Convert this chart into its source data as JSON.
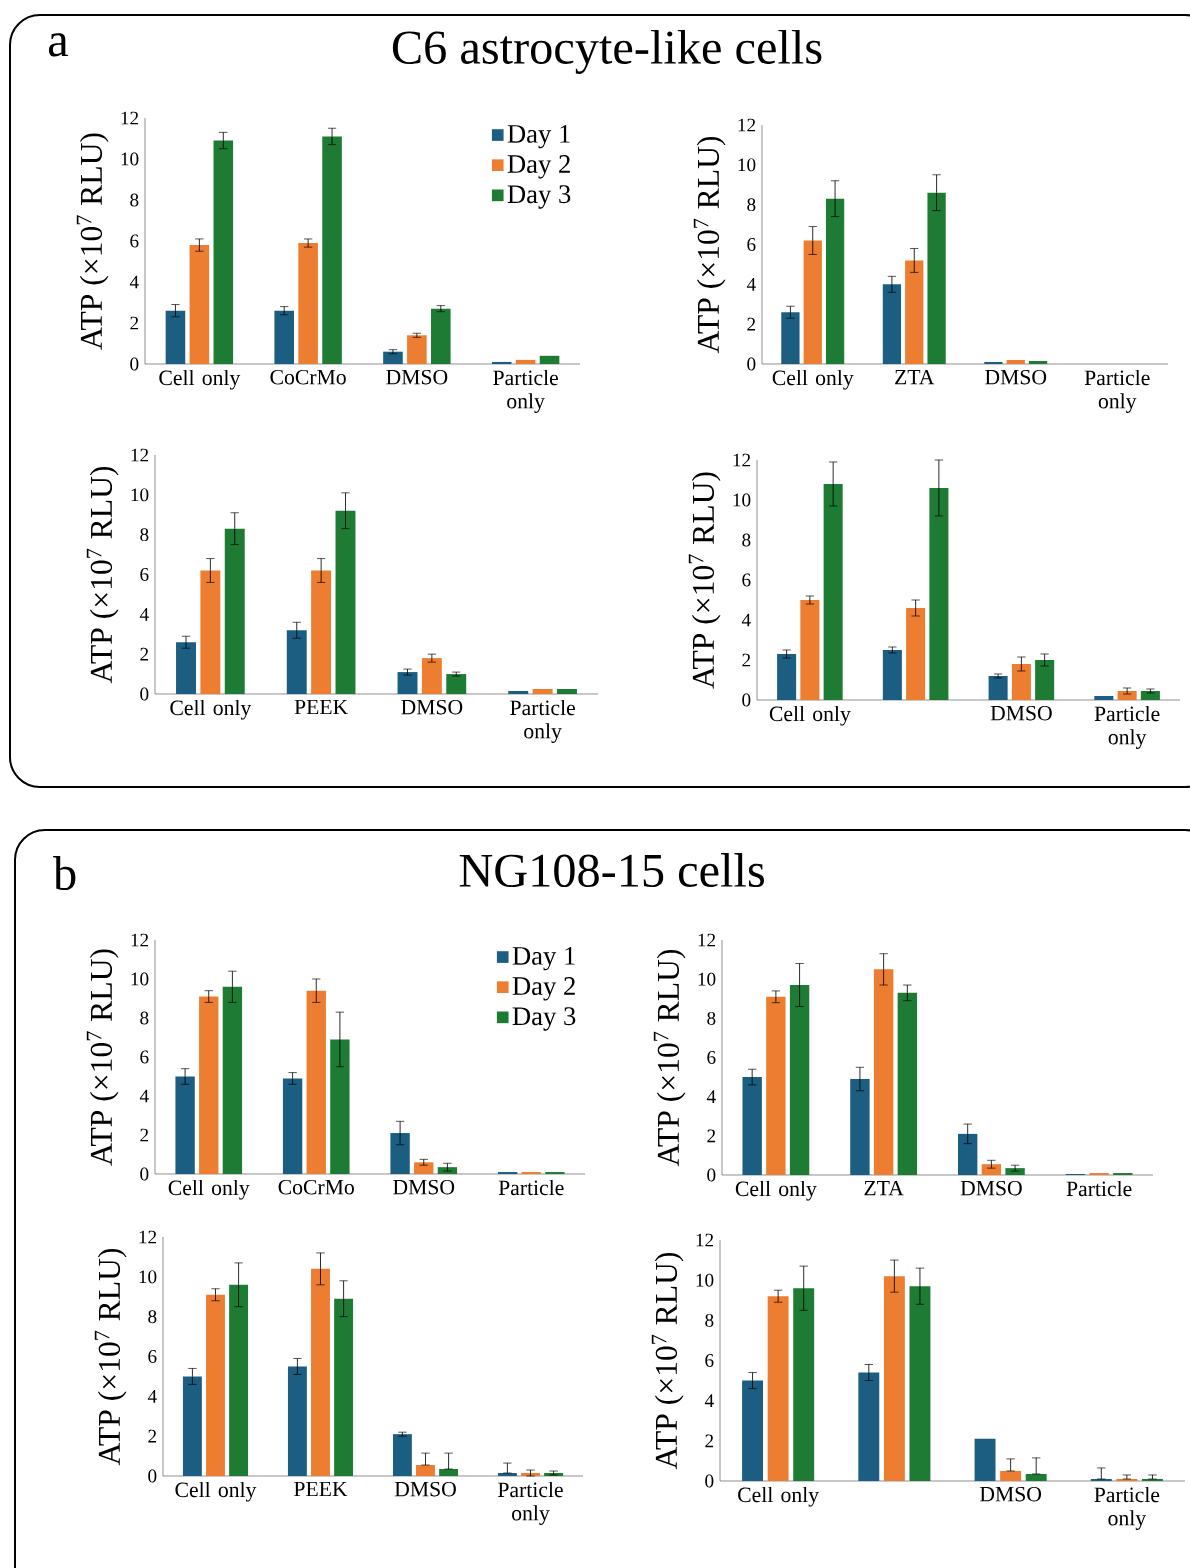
{
  "chart_data": [
    {
      "type": "bar",
      "title": "C6 astrocyte-like cells",
      "annotations": [
        "a"
      ],
      "ylabel": "ATP (×10$^{7}$ RLU)",
      "categories": [
        "Cell only",
        "CoCrMo",
        "DMSO",
        "Particle only"
      ],
      "ylim": [
        0,
        12
      ],
      "yticks": [
        0,
        2,
        4,
        6,
        8,
        10,
        12
      ],
      "legend": "top right",
      "series": [
        {
          "name": "Day 1",
          "color": "#1b5e82",
          "values": [
            2.6,
            2.6,
            0.6,
            0.1
          ],
          "errors": [
            0.3,
            0.2,
            0.1,
            null
          ]
        },
        {
          "name": "Day 2",
          "color": "#ed7d31",
          "values": [
            5.8,
            5.9,
            1.4,
            0.2
          ],
          "errors": [
            0.3,
            0.2,
            0.1,
            null
          ]
        },
        {
          "name": "Day 3",
          "color": "#1e7b34",
          "values": [
            10.9,
            11.1,
            2.7,
            0.4
          ],
          "errors": [
            0.4,
            0.4,
            0.15,
            null
          ]
        }
      ]
    },
    {
      "type": "bar",
      "ylabel": "ATP (×10$^{7}$ RLU)",
      "categories": [
        "Cell only",
        "ZTA",
        "DMSO",
        "Particle only"
      ],
      "ylim": [
        0,
        12
      ],
      "yticks": [
        0,
        2,
        4,
        6,
        8,
        10,
        12
      ],
      "series": [
        {
          "color": "#1b5e82",
          "values": [
            2.6,
            4.0,
            0.1,
            null
          ],
          "errors": [
            0.3,
            0.4,
            null,
            null
          ]
        },
        {
          "color": "#ed7d31",
          "values": [
            6.2,
            5.2,
            0.2,
            null
          ],
          "errors": [
            0.7,
            0.6,
            null,
            null
          ]
        },
        {
          "color": "#1e7b34",
          "values": [
            8.3,
            8.6,
            0.15,
            null
          ],
          "errors": [
            0.9,
            0.9,
            null,
            null
          ]
        }
      ]
    },
    {
      "type": "bar",
      "ylabel": "ATP (×10$^{7}$ RLU)",
      "categories": [
        "Cell only",
        "PEEK",
        "DMSO",
        "Particle only"
      ],
      "ylim": [
        0,
        12
      ],
      "yticks": [
        0,
        2,
        4,
        6,
        8,
        10,
        12
      ],
      "series": [
        {
          "color": "#1b5e82",
          "values": [
            2.6,
            3.2,
            1.1,
            0.15
          ],
          "errors": [
            0.3,
            0.4,
            0.15,
            null
          ]
        },
        {
          "color": "#ed7d31",
          "values": [
            6.2,
            6.2,
            1.8,
            0.25
          ],
          "errors": [
            0.6,
            0.6,
            0.2,
            null
          ]
        },
        {
          "color": "#1e7b34",
          "values": [
            8.3,
            9.2,
            1.0,
            0.25
          ],
          "errors": [
            0.8,
            0.9,
            0.1,
            null
          ]
        }
      ]
    },
    {
      "type": "bar",
      "ylabel": "ATP (×10$^{7}$ RLU)",
      "categories": [
        "Cell only",
        null,
        "DMSO",
        "Particle only"
      ],
      "ylim": [
        0,
        12
      ],
      "yticks": [
        0,
        2,
        4,
        6,
        8,
        10,
        12
      ],
      "series": [
        {
          "color": "#1b5e82",
          "values": [
            2.3,
            2.5,
            1.2,
            0.2
          ],
          "errors": [
            0.2,
            0.15,
            0.1,
            null
          ]
        },
        {
          "color": "#ed7d31",
          "values": [
            5.0,
            4.6,
            1.8,
            0.45
          ],
          "errors": [
            0.2,
            0.4,
            0.35,
            0.15
          ]
        },
        {
          "color": "#1e7b34",
          "values": [
            10.8,
            10.6,
            2.0,
            0.45
          ],
          "errors": [
            1.1,
            1.4,
            0.3,
            0.1
          ]
        }
      ]
    },
    {
      "type": "bar",
      "title": "NG108-15 cells",
      "annotations": [
        "b"
      ],
      "ylabel": "ATP (×10$^{7}$ RLU)",
      "categories": [
        "Cell only",
        "CoCrMo",
        "DMSO",
        "Particle"
      ],
      "ylim": [
        0,
        12
      ],
      "yticks": [
        0,
        2,
        4,
        6,
        8,
        10,
        12
      ],
      "legend": "top right",
      "series": [
        {
          "name": "Day 1",
          "color": "#1b5e82",
          "values": [
            5.0,
            4.9,
            2.1,
            0.1
          ],
          "errors": [
            0.4,
            0.3,
            0.6,
            null
          ]
        },
        {
          "name": "Day 2",
          "color": "#ed7d31",
          "values": [
            9.1,
            9.4,
            0.6,
            0.1
          ],
          "errors": [
            0.3,
            0.6,
            0.15,
            null
          ]
        },
        {
          "name": "Day 3",
          "color": "#1e7b34",
          "values": [
            9.6,
            6.9,
            0.35,
            0.1
          ],
          "errors": [
            0.8,
            1.4,
            0.2,
            null
          ]
        }
      ]
    },
    {
      "type": "bar",
      "ylabel": "ATP (×10$^{7}$ RLU)",
      "categories": [
        "Cell only",
        "ZTA",
        "DMSO",
        "Particle"
      ],
      "ylim": [
        0,
        12
      ],
      "yticks": [
        0,
        2,
        4,
        6,
        8,
        10,
        12
      ],
      "series": [
        {
          "color": "#1b5e82",
          "values": [
            5.0,
            4.9,
            2.1,
            0.05
          ],
          "errors": [
            0.4,
            0.6,
            0.5,
            null
          ]
        },
        {
          "color": "#ed7d31",
          "values": [
            9.1,
            10.5,
            0.55,
            0.1
          ],
          "errors": [
            0.3,
            0.8,
            0.2,
            null
          ]
        },
        {
          "color": "#1e7b34",
          "values": [
            9.7,
            9.3,
            0.35,
            0.1
          ],
          "errors": [
            1.1,
            0.4,
            0.15,
            null
          ]
        }
      ]
    },
    {
      "type": "bar",
      "ylabel": "ATP (×10$^{7}$ RLU)",
      "categories": [
        "Cell only",
        "PEEK",
        "DMSO",
        "Particle only"
      ],
      "ylim": [
        0,
        12
      ],
      "yticks": [
        0,
        2,
        4,
        6,
        8,
        10,
        12
      ],
      "series": [
        {
          "color": "#1b5e82",
          "values": [
            5.0,
            5.5,
            2.1,
            0.15
          ],
          "errors": [
            0.4,
            0.4,
            0.1,
            [
              0.15,
              0.65
            ]
          ]
        },
        {
          "color": "#ed7d31",
          "values": [
            9.1,
            10.4,
            0.55,
            0.15
          ],
          "errors": [
            0.3,
            0.8,
            [
              0.55,
              1.15
            ],
            0.15
          ]
        },
        {
          "color": "#1e7b34",
          "values": [
            9.6,
            8.9,
            0.35,
            0.15
          ],
          "errors": [
            1.1,
            0.9,
            [
              0.35,
              1.15
            ],
            0.1
          ]
        }
      ]
    },
    {
      "type": "bar",
      "ylabel": "ATP (×10$^{7}$ RLU)",
      "categories": [
        "Cell only",
        null,
        "DMSO",
        "Particle only"
      ],
      "ylim": [
        0,
        12
      ],
      "yticks": [
        0,
        2,
        4,
        6,
        8,
        10,
        12
      ],
      "series": [
        {
          "color": "#1b5e82",
          "values": [
            5.0,
            5.4,
            2.1,
            0.1
          ],
          "errors": [
            0.4,
            0.4,
            null,
            [
              0.1,
              0.65
            ]
          ]
        },
        {
          "color": "#ed7d31",
          "values": [
            9.2,
            10.2,
            0.5,
            0.1
          ],
          "errors": [
            0.3,
            0.8,
            [
              0.5,
              1.1
            ],
            [
              0.1,
              0.3
            ]
          ]
        },
        {
          "color": "#1e7b34",
          "values": [
            9.6,
            9.7,
            0.35,
            0.1
          ],
          "errors": [
            1.1,
            0.9,
            [
              0.35,
              1.15
            ],
            [
              0.1,
              0.3
            ]
          ]
        }
      ]
    }
  ]
}
